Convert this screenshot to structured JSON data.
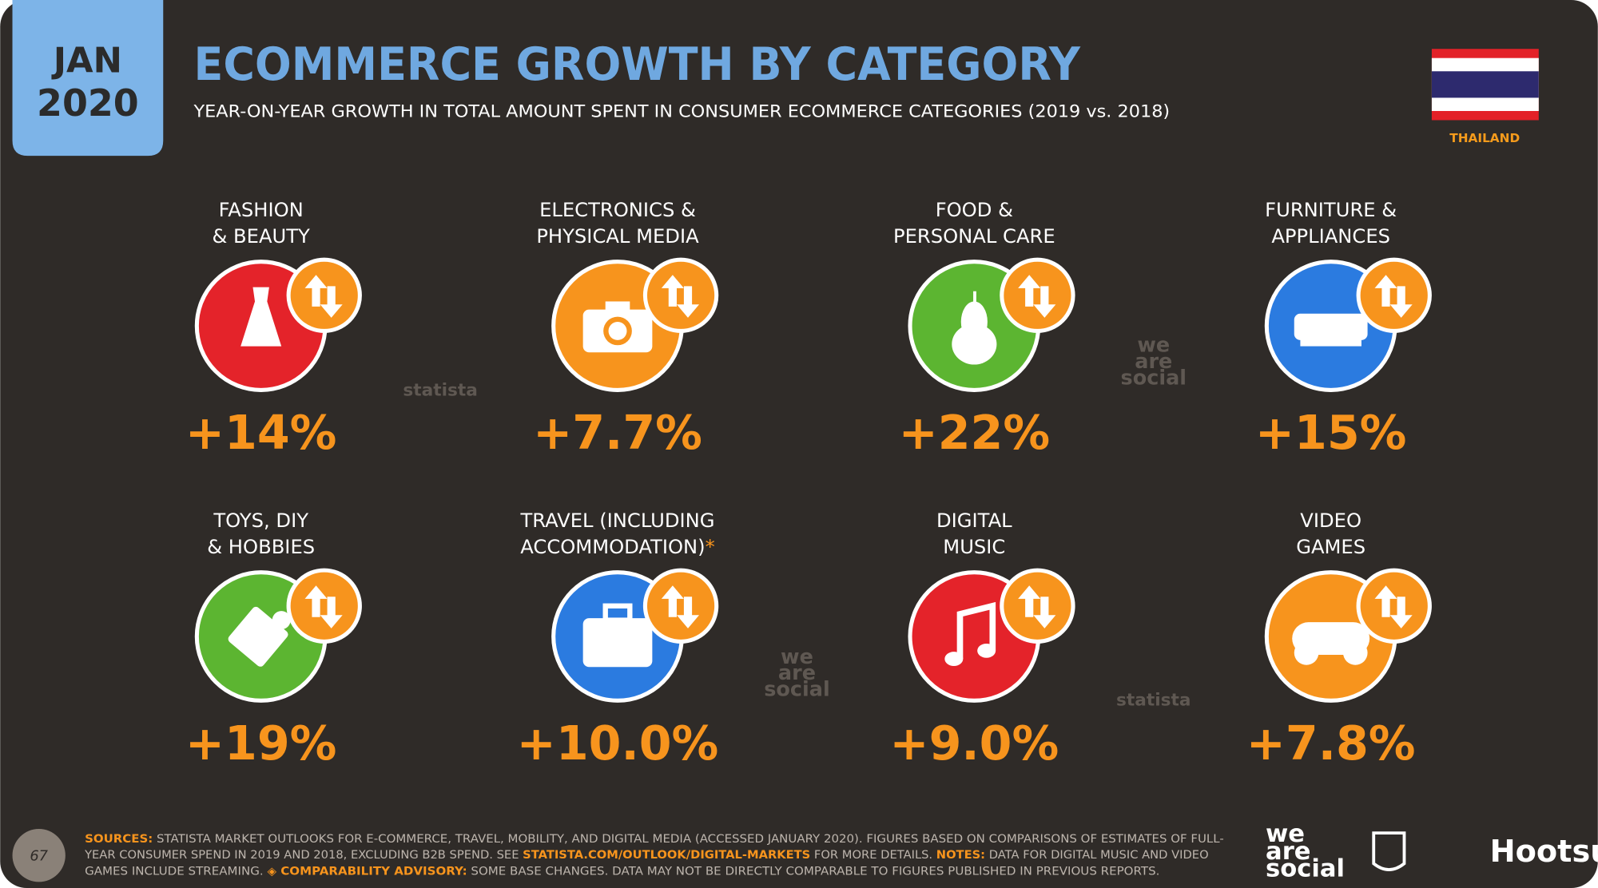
{
  "header": {
    "month": "JAN",
    "year": "2020",
    "title": "ECOMMERCE GROWTH BY CATEGORY",
    "subtitle": "YEAR-ON-YEAR GROWTH IN TOTAL AMOUNT SPENT IN CONSUMER ECOMMERCE CATEGORIES (2019 vs. 2018)",
    "country": "THAILAND"
  },
  "categories": [
    {
      "label": [
        "FASHION",
        "& BEAUTY"
      ],
      "value": "+14%"
    },
    {
      "label": [
        "ELECTRONICS &",
        "PHYSICAL MEDIA"
      ],
      "value": "+7.7%"
    },
    {
      "label": [
        "FOOD &",
        "PERSONAL CARE"
      ],
      "value": "+22%"
    },
    {
      "label": [
        "FURNITURE &",
        "APPLIANCES"
      ],
      "value": "+15%"
    },
    {
      "label": [
        "TOYS, DIY",
        "& HOBBIES"
      ],
      "value": "+19%"
    },
    {
      "label": [
        "TRAVEL (INCLUDING",
        "ACCOMMODATION)"
      ],
      "label_mark": "*",
      "value": "+10.0%"
    },
    {
      "label": [
        "DIGITAL",
        "MUSIC"
      ],
      "value": "+9.0%"
    },
    {
      "label": [
        "VIDEO",
        "GAMES"
      ],
      "value": "+7.8%"
    }
  ],
  "watermarks": [
    [
      "statista"
    ],
    [
      "we",
      "are",
      "social"
    ],
    [
      "we",
      "are",
      "social"
    ],
    [
      "statista"
    ]
  ],
  "footer": {
    "page_number": "67",
    "sources": [
      [
        "SOURCES:",
        " STATISTA MARKET OUTLOOKS FOR E-COMMERCE, TRAVEL, MOBILITY, AND DIGITAL MEDIA (ACCESSED JANUARY 2020). FIGURES BASED ON COMPARISONS OF ESTIMATES OF FULL-"
      ],
      [
        "YEAR CONSUMER SPEND IN 2019 AND 2018, EXCLUDING B2B SPEND. SEE ",
        "STATISTA.COM/OUTLOOK/DIGITAL-MARKETS",
        " FOR MORE DETAILS. ",
        "NOTES:",
        " DATA FOR DIGITAL MUSIC AND VIDEO"
      ],
      [
        "GAMES INCLUDE STREAMING. ",
        "◈ COMPARABILITY ADVISORY:",
        " SOME BASE CHANGES. DATA MAY NOT BE DIRECTLY COMPARABLE TO FIGURES PUBLISHED IN PREVIOUS REPORTS."
      ]
    ],
    "we_are_social": [
      "we",
      "are",
      "social"
    ],
    "hootsuite": "Hootsuite"
  }
}
